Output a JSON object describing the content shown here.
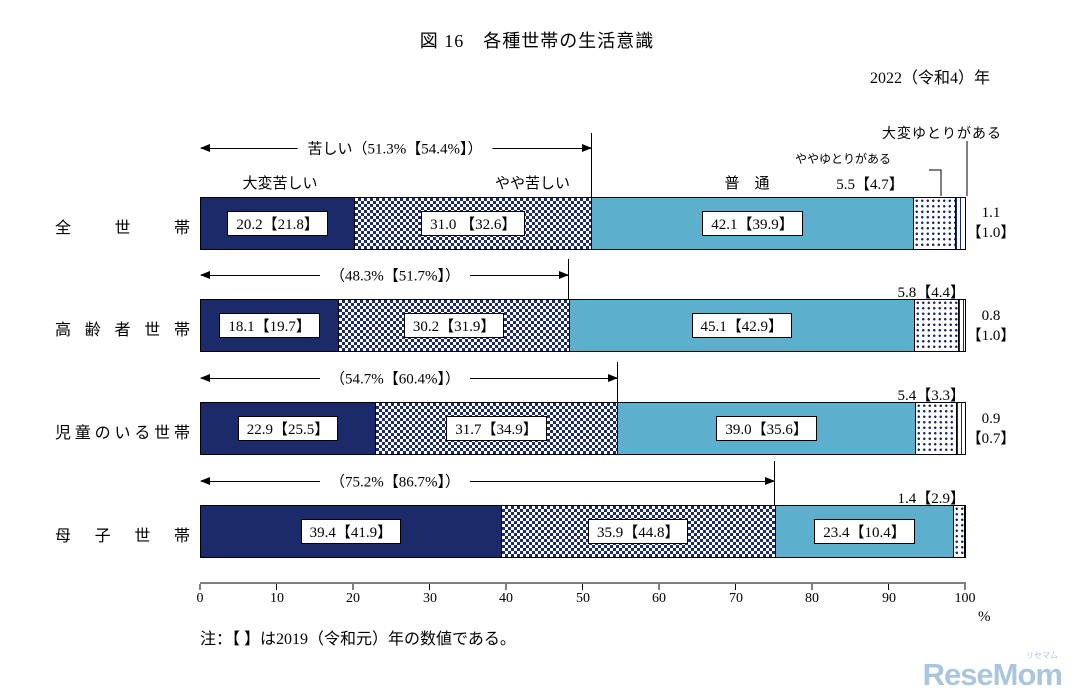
{
  "title": "図 16　各種世帯の生活意識",
  "year_label": "2022（令和4）年",
  "note": "注：【 】は2019（令和元）年の数値である。",
  "watermark": {
    "main": "ReseMom",
    "small": "リセマム"
  },
  "colors": {
    "navy": "#1a2a6b",
    "teal": "#5cb0cd",
    "watermark": "#a9c6dd"
  },
  "axis": {
    "ticks": [
      "0",
      "10",
      "20",
      "30",
      "40",
      "50",
      "60",
      "70",
      "80",
      "90",
      "100"
    ],
    "unit": "%"
  },
  "legend": {
    "seg1": "大変苦しい",
    "seg2": "やや苦しい",
    "seg3": "普　通",
    "seg4": "ややゆとりがある",
    "seg5": "大変ゆとりがある"
  },
  "rows": [
    {
      "label": "全世帯",
      "bracket_label": "苦しい（51.3%【54.4%】）",
      "bracket_span": 51.3,
      "w1": 20.2,
      "w2": 31.0,
      "w3": 42.1,
      "w4": 5.5,
      "w5": 1.1,
      "seg1": "20.2【21.8】",
      "seg2": "31.0 【32.6】",
      "seg3": "42.1【39.9】",
      "out4": "5.5【4.7】",
      "out5a": "1.1",
      "out5b": "【1.0】"
    },
    {
      "label": "高齢者世帯",
      "bracket_label": "（48.3%【51.7%】）",
      "bracket_span": 48.3,
      "w1": 18.1,
      "w2": 30.2,
      "w3": 45.1,
      "w4": 5.8,
      "w5": 0.8,
      "seg1": "18.1【19.7】",
      "seg2": "30.2【31.9】",
      "seg3": "45.1【42.9】",
      "out4": "5.8【4.4】",
      "out5a": "0.8",
      "out5b": "【1.0】"
    },
    {
      "label": "児童のいる世帯",
      "bracket_label": "（54.7%【60.4%】）",
      "bracket_span": 54.7,
      "w1": 22.9,
      "w2": 31.7,
      "w3": 39.0,
      "w4": 5.4,
      "w5": 0.9,
      "seg1": "22.9【25.5】",
      "seg2": "31.7【34.9】",
      "seg3": "39.0【35.6】",
      "out4": "5.4【3.3】",
      "out5a": "0.9",
      "out5b": "【0.7】"
    },
    {
      "label": "母子世帯",
      "bracket_label": "（75.2%【86.7%】）",
      "bracket_span": 75.2,
      "w1": 39.4,
      "w2": 35.9,
      "w3": 23.4,
      "w4": 1.4,
      "w5": 0,
      "seg1": "39.4【41.9】",
      "seg2": "35.9【44.8】",
      "seg3": "23.4【10.4】",
      "out4": "1.4【2.9】",
      "out5a": "",
      "out5b": ""
    }
  ],
  "chart_data": {
    "type": "bar",
    "subtype": "horizontal-stacked",
    "title": "図16　各種世帯の生活意識",
    "year": "2022（令和4）年",
    "unit": "%",
    "xlim": [
      0,
      100
    ],
    "x_ticks": [
      0,
      10,
      20,
      30,
      40,
      50,
      60,
      70,
      80,
      90,
      100
    ],
    "note": "【 】は2019（令和元）年の数値である。",
    "categories": [
      "全世帯",
      "高齢者世帯",
      "児童のいる世帯",
      "母子世帯"
    ],
    "series": [
      {
        "name": "大変苦しい",
        "values_2022": [
          20.2,
          18.1,
          22.9,
          39.4
        ],
        "values_2019": [
          21.8,
          19.7,
          25.5,
          41.9
        ]
      },
      {
        "name": "やや苦しい",
        "values_2022": [
          31.0,
          30.2,
          31.7,
          35.9
        ],
        "values_2019": [
          32.6,
          31.9,
          34.9,
          44.8
        ]
      },
      {
        "name": "普通",
        "values_2022": [
          42.1,
          45.1,
          39.0,
          23.4
        ],
        "values_2019": [
          39.9,
          42.9,
          35.6,
          10.4
        ]
      },
      {
        "name": "ややゆとりがある",
        "values_2022": [
          5.5,
          5.8,
          5.4,
          1.4
        ],
        "values_2019": [
          4.7,
          4.4,
          3.3,
          2.9
        ]
      },
      {
        "name": "大変ゆとりがある",
        "values_2022": [
          1.1,
          0.8,
          0.9,
          null
        ],
        "values_2019": [
          1.0,
          1.0,
          0.7,
          null
        ]
      }
    ],
    "kurushii_subtotal": {
      "label": "苦しい",
      "values_2022": [
        51.3,
        48.3,
        54.7,
        75.2
      ],
      "values_2019": [
        54.4,
        51.7,
        60.4,
        86.7
      ]
    }
  }
}
